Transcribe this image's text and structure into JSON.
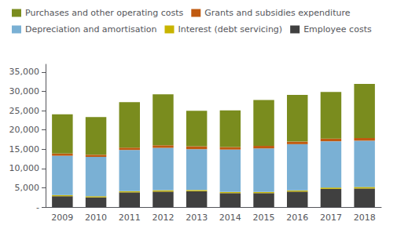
{
  "chart_data": {
    "type": "bar",
    "stacked": true,
    "categories": [
      "2009",
      "2010",
      "2011",
      "2012",
      "2013",
      "2014",
      "2015",
      "2016",
      "2017",
      "2018"
    ],
    "series": [
      {
        "name": "Employee costs",
        "color": "#404040",
        "values": [
          2800,
          2500,
          3800,
          4000,
          4100,
          3600,
          3600,
          4000,
          4700,
          4800
        ]
      },
      {
        "name": "Interest (debt servicing)",
        "color": "#c8b400",
        "values": [
          300,
          300,
          300,
          350,
          300,
          300,
          300,
          300,
          350,
          400
        ]
      },
      {
        "name": "Depreciation and amortisation",
        "color": "#7ab0d4",
        "values": [
          10200,
          10200,
          10700,
          11000,
          10600,
          11000,
          11300,
          12000,
          12000,
          12000
        ]
      },
      {
        "name": "Grants and subsidies expenditure",
        "color": "#c05a10",
        "values": [
          550,
          550,
          600,
          650,
          750,
          650,
          650,
          650,
          700,
          700
        ]
      },
      {
        "name": "Purchases and other operating costs",
        "color": "#7a8c1e",
        "values": [
          10200,
          9800,
          11800,
          13200,
          9200,
          9500,
          11900,
          12100,
          12100,
          14000
        ]
      }
    ],
    "ylim": [
      0,
      37000
    ],
    "yticks": [
      {
        "value": 0,
        "label": "-"
      },
      {
        "value": 5000,
        "label": "5,000"
      },
      {
        "value": 10000,
        "label": "10,000"
      },
      {
        "value": 15000,
        "label": "15,000"
      },
      {
        "value": 20000,
        "label": "20,000"
      },
      {
        "value": 25000,
        "label": "25,000"
      },
      {
        "value": 30000,
        "label": "30,000"
      },
      {
        "value": 35000,
        "label": "35,000"
      }
    ],
    "grid": false,
    "legend": "upper left"
  }
}
